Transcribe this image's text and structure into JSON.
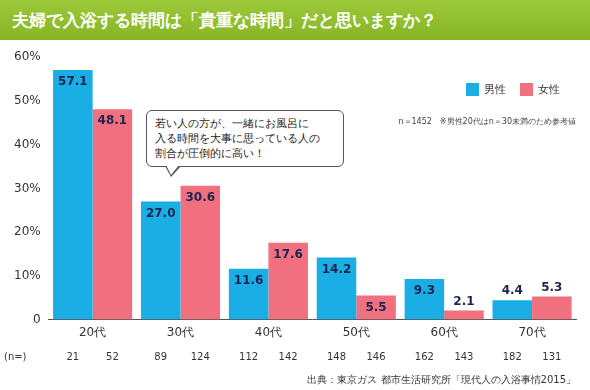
{
  "chart_data": {
    "type": "bar",
    "title": "夫婦で入浴する時間は「貴重な時間」だと思いますか？",
    "categories": [
      "20代",
      "30代",
      "40代",
      "50代",
      "60代",
      "70代"
    ],
    "series": [
      {
        "name": "男性",
        "color": "#1aaee5",
        "values": [
          57.1,
          27.0,
          11.6,
          14.2,
          9.3,
          4.4
        ],
        "value_labels": [
          "57.1",
          "27.0",
          "11.6",
          "14.2",
          "9.3",
          "4.4"
        ],
        "n": [
          21,
          89,
          112,
          148,
          162,
          182
        ]
      },
      {
        "name": "女性",
        "color": "#f0707f",
        "values": [
          48.1,
          30.6,
          17.6,
          5.5,
          2.1,
          5.3
        ],
        "value_labels": [
          "48.1",
          "30.6",
          "17.6",
          "5.5",
          "2.1",
          "5.3"
        ],
        "n": [
          52,
          124,
          142,
          146,
          143,
          131
        ]
      }
    ],
    "n_label": "(n=)",
    "ylim": [
      0,
      60
    ],
    "yticks": [
      0,
      {
        "value": 10,
        "label": "10%"
      },
      {
        "value": 20,
        "label": "20%"
      },
      {
        "value": 30,
        "label": "30%"
      },
      {
        "value": 40,
        "label": "40%"
      },
      {
        "value": 50,
        "label": "50%"
      },
      {
        "value": 60,
        "label": "60%"
      }
    ],
    "grid": false,
    "legend": "top-right",
    "data_labels": true,
    "annotation": [
      "若い人の方が、一緒にお風呂に",
      "入る時間を大事に思っている人の",
      "割合が圧倒的に高い！"
    ],
    "note": "n＝1452　※男性20代はn＝30未満のため参考値",
    "source": "出典：東京ガス 都市生活研究所「現代人の入浴事情2015」"
  }
}
